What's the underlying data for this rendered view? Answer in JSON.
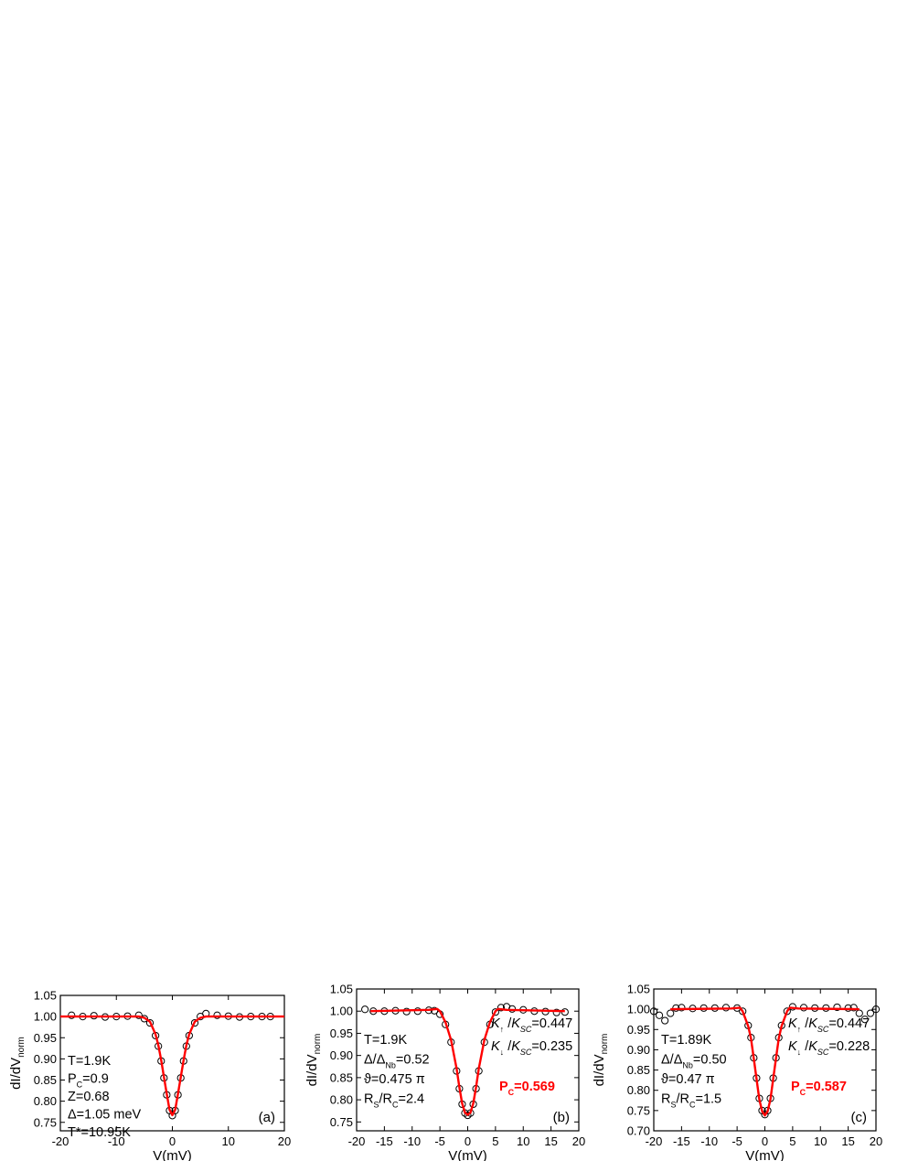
{
  "chart_data": [
    {
      "type": "scatter",
      "panel_label": "(a)",
      "xlabel": "V(mV)",
      "ylabel": "dI/dV",
      "ylabel_sub": "norm",
      "xlim": [
        -20,
        20
      ],
      "ylim": [
        0.73,
        1.05
      ],
      "xticks": [
        -20,
        -10,
        0,
        10,
        20
      ],
      "yticks": [
        0.75,
        0.8,
        0.85,
        0.9,
        0.95,
        1.0,
        1.05
      ],
      "annotations": [
        {
          "main": "T=1.9K"
        },
        {
          "main": "P",
          "sub": "C",
          "rest": "=0.9"
        },
        {
          "main": "Z=0.68"
        },
        {
          "main": "Δ=1.05 meV"
        },
        {
          "main": "T*=10.95K"
        }
      ],
      "series": [
        {
          "kind": "data",
          "marker": "open-circle",
          "color": "#000000",
          "x": [
            -18,
            -16,
            -14,
            -12,
            -10,
            -8,
            -6,
            -5,
            -4,
            -3,
            -2.5,
            -2,
            -1.5,
            -1,
            -0.5,
            0,
            0.5,
            1,
            1.5,
            2,
            2.5,
            3,
            4,
            5,
            6,
            8,
            10,
            12,
            14,
            16,
            17.5
          ],
          "y": [
            1.003,
            1.0,
            1.002,
            0.999,
            1.0,
            1.001,
            1.003,
            0.995,
            0.985,
            0.955,
            0.93,
            0.895,
            0.855,
            0.815,
            0.778,
            0.766,
            0.778,
            0.815,
            0.855,
            0.895,
            0.93,
            0.955,
            0.985,
            1.0,
            1.007,
            1.003,
            1.001,
            0.999,
            1.0,
            1.0,
            1.0
          ]
        },
        {
          "kind": "fit",
          "color": "#ff0000",
          "x": [
            -20,
            -6,
            -5,
            -4,
            -3,
            -2.5,
            -2,
            -1.5,
            -1,
            -0.5,
            0,
            0.5,
            1,
            1.5,
            2,
            2.5,
            3,
            4,
            5,
            6,
            20
          ],
          "y": [
            1.0,
            1.0,
            0.997,
            0.988,
            0.958,
            0.932,
            0.897,
            0.857,
            0.817,
            0.78,
            0.767,
            0.78,
            0.817,
            0.857,
            0.897,
            0.932,
            0.958,
            0.988,
            0.997,
            1.0,
            1.0
          ]
        }
      ]
    },
    {
      "type": "scatter",
      "panel_label": "(b)",
      "xlabel": "V(mV)",
      "ylabel": "dI/dV",
      "ylabel_sub": "norm",
      "xlim": [
        -20,
        20
      ],
      "ylim": [
        0.73,
        1.05
      ],
      "xticks": [
        -20,
        -15,
        -10,
        -5,
        0,
        5,
        10,
        15,
        20
      ],
      "yticks": [
        0.75,
        0.8,
        0.85,
        0.9,
        0.95,
        1.0,
        1.05
      ],
      "annotations": [
        {
          "main": "T=1.9K"
        },
        {
          "main": "Δ/Δ",
          "sub": "Nb",
          "rest": "=0.52"
        },
        {
          "main": "ϑ=0.475 π"
        },
        {
          "main": "R",
          "sub": "S",
          "rest": "/R",
          "sub2": "C",
          "rest2": "=2.4"
        }
      ],
      "annotations_right": [
        {
          "main": "K",
          "sub": "↑",
          "rest": " /K",
          "sub2": "SC",
          "rest2": "=0.447"
        },
        {
          "main": "K",
          "sub": "↓",
          "rest": " /K",
          "sub2": "SC",
          "rest2": "=0.235"
        }
      ],
      "highlight": {
        "main": "P",
        "sub": "C",
        "rest": "=0.569",
        "color": "#ff0000"
      },
      "series": [
        {
          "kind": "data",
          "marker": "open-circle",
          "color": "#000000",
          "x": [
            -18.5,
            -17,
            -15,
            -13,
            -11,
            -9,
            -7,
            -6,
            -5,
            -4,
            -3,
            -2,
            -1.5,
            -1,
            -0.5,
            0,
            0.5,
            1,
            1.5,
            2,
            3,
            4,
            5,
            6,
            7,
            8,
            10,
            12,
            14,
            16,
            17.5
          ],
          "y": [
            1.004,
            1.0,
            1.0,
            1.001,
            0.999,
            1.0,
            1.002,
            1.001,
            0.993,
            0.97,
            0.93,
            0.865,
            0.825,
            0.79,
            0.77,
            0.765,
            0.77,
            0.79,
            0.825,
            0.865,
            0.93,
            0.97,
            0.998,
            1.008,
            1.01,
            1.005,
            1.003,
            1.0,
            0.999,
            0.997,
            0.998
          ]
        },
        {
          "kind": "fit",
          "color": "#ff0000",
          "x": [
            -17.5,
            -7,
            -5.5,
            -5,
            -4,
            -3,
            -2,
            -1.5,
            -1,
            -0.5,
            0,
            0.5,
            1,
            1.5,
            2,
            3,
            4,
            5,
            5.5,
            7,
            17.5
          ],
          "y": [
            1.0,
            1.003,
            1.005,
            1.0,
            0.975,
            0.935,
            0.87,
            0.828,
            0.792,
            0.771,
            0.766,
            0.771,
            0.792,
            0.828,
            0.87,
            0.935,
            0.975,
            1.0,
            1.005,
            1.003,
            1.0
          ]
        }
      ]
    },
    {
      "type": "scatter",
      "panel_label": "(c)",
      "xlabel": "V(mV)",
      "ylabel": "dI/dV",
      "ylabel_sub": "norm",
      "xlim": [
        -20,
        20
      ],
      "ylim": [
        0.7,
        1.05
      ],
      "xticks": [
        -20,
        -15,
        -10,
        -5,
        0,
        5,
        10,
        15,
        20
      ],
      "yticks": [
        0.7,
        0.75,
        0.8,
        0.85,
        0.9,
        0.95,
        1.0,
        1.05
      ],
      "annotations": [
        {
          "main": "T=1.89K"
        },
        {
          "main": "Δ/Δ",
          "sub": "Nb",
          "rest": "=0.50"
        },
        {
          "main": "ϑ=0.47 π"
        },
        {
          "main": "R",
          "sub": "S",
          "rest": "/R",
          "sub2": "C",
          "rest2": "=1.5"
        }
      ],
      "annotations_right": [
        {
          "main": "K",
          "sub": "↑",
          "rest": " /K",
          "sub2": "SC",
          "rest2": "=0.447"
        },
        {
          "main": "K",
          "sub": "↓",
          "rest": " /K",
          "sub2": "SC",
          "rest2": "=0.228"
        }
      ],
      "highlight": {
        "main": "P",
        "sub": "C",
        "rest": "=0.587",
        "color": "#ff0000"
      },
      "series": [
        {
          "kind": "data",
          "marker": "open-circle",
          "color": "#000000",
          "x": [
            -20,
            -19,
            -18,
            -17,
            -16,
            -15,
            -13,
            -11,
            -9,
            -7,
            -5,
            -4,
            -3,
            -2.5,
            -2,
            -1.5,
            -1,
            -0.5,
            0,
            0.5,
            1,
            1.5,
            2,
            2.5,
            3,
            4,
            5,
            7,
            9,
            11,
            13,
            15,
            16,
            17,
            18,
            19,
            20
          ],
          "y": [
            0.995,
            0.985,
            0.972,
            0.99,
            1.003,
            1.004,
            1.002,
            1.003,
            1.003,
            1.004,
            1.003,
            0.995,
            0.96,
            0.93,
            0.88,
            0.83,
            0.78,
            0.75,
            0.74,
            0.75,
            0.78,
            0.83,
            0.88,
            0.93,
            0.96,
            0.995,
            1.006,
            1.004,
            1.003,
            1.003,
            1.005,
            1.003,
            1.004,
            0.99,
            0.975,
            0.99,
            1.0
          ]
        },
        {
          "kind": "fit",
          "color": "#ff0000",
          "x": [
            -17,
            -6,
            -4.5,
            -4,
            -3,
            -2.5,
            -2,
            -1.5,
            -1,
            -0.5,
            0,
            0.5,
            1,
            1.5,
            2,
            2.5,
            3,
            4,
            4.5,
            6,
            17
          ],
          "y": [
            1.0,
            1.002,
            1.004,
            0.995,
            0.958,
            0.928,
            0.878,
            0.828,
            0.778,
            0.748,
            0.738,
            0.748,
            0.778,
            0.828,
            0.878,
            0.928,
            0.958,
            0.995,
            1.004,
            1.002,
            1.0
          ]
        }
      ]
    }
  ]
}
